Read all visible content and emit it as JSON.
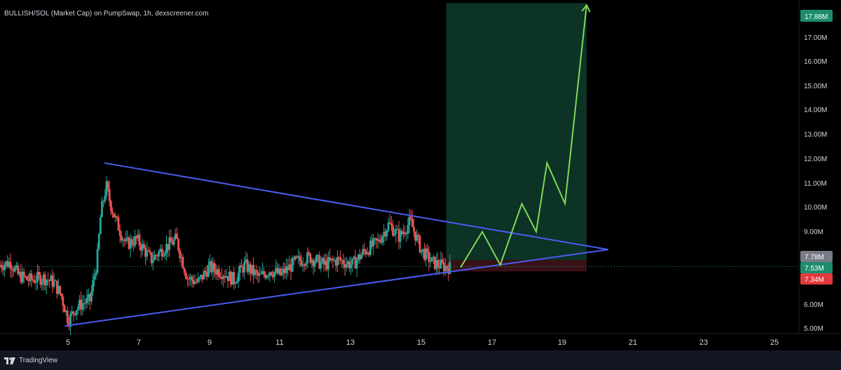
{
  "header": {
    "title": "BULLISH/SOL (Market Cap) on PumpSwap, 1h, dexscreener.com"
  },
  "footer": {
    "brand": "TradingView"
  },
  "colors": {
    "background": "#000000",
    "up": "#26a69a",
    "down": "#ef5350",
    "triangle": "#4a5cf0",
    "projection": "#7ed957",
    "target_zone": "#0f3b2d",
    "stop_zone": "#3d1318",
    "axis_text": "#d1d4dc"
  },
  "price_axis": {
    "ticks": [
      "17.00M",
      "16.00M",
      "15.00M",
      "14.00M",
      "13.00M",
      "12.00M",
      "11.00M",
      "10.00M",
      "9.00M",
      "6.00M",
      "5.00M"
    ],
    "tag_target": "17.88M",
    "tag_entry_upper": "7.78M",
    "tag_last": "7.53M",
    "tag_stop": "7.34M"
  },
  "time_axis": {
    "ticks": [
      "5",
      "7",
      "9",
      "11",
      "13",
      "15",
      "17",
      "19",
      "21",
      "23",
      "25"
    ]
  },
  "chart_data": {
    "type": "candlestick",
    "title": "BULLISH/SOL (Market Cap) on PumpSwap, 1h, dexscreener.com",
    "xlabel": "",
    "ylabel": "",
    "y_unit": "M",
    "ylim": [
      4.9,
      18.0
    ],
    "xlim": [
      3.8,
      26.0
    ],
    "y_ticks": [
      5,
      6,
      9,
      10,
      11,
      12,
      13,
      14,
      15,
      16,
      17
    ],
    "x_ticks": [
      5,
      7,
      9,
      11,
      13,
      15,
      17,
      19,
      21,
      23,
      25
    ],
    "grid": false,
    "price_path": [
      [
        3.8,
        7.6
      ],
      [
        4.1,
        7.7
      ],
      [
        4.3,
        7.2
      ],
      [
        4.6,
        7.0
      ],
      [
        5.0,
        7.1
      ],
      [
        5.3,
        6.9
      ],
      [
        5.5,
        6.4
      ],
      [
        5.7,
        5.4
      ],
      [
        5.9,
        5.9
      ],
      [
        6.1,
        6.1
      ],
      [
        6.3,
        6.2
      ],
      [
        6.5,
        7.8
      ],
      [
        6.6,
        9.6
      ],
      [
        6.75,
        10.7
      ],
      [
        6.85,
        10.1
      ],
      [
        7.0,
        9.4
      ],
      [
        7.3,
        8.4
      ],
      [
        7.6,
        8.6
      ],
      [
        8.0,
        7.8
      ],
      [
        8.3,
        8.2
      ],
      [
        8.7,
        8.6
      ],
      [
        9.0,
        7.1
      ],
      [
        9.3,
        6.9
      ],
      [
        9.6,
        7.5
      ],
      [
        10.0,
        7.3
      ],
      [
        10.3,
        7.0
      ],
      [
        10.6,
        7.6
      ],
      [
        11.0,
        7.1
      ],
      [
        11.3,
        7.4
      ],
      [
        11.6,
        7.2
      ],
      [
        12.0,
        7.7
      ],
      [
        12.4,
        7.9
      ],
      [
        12.8,
        7.6
      ],
      [
        13.2,
        7.8
      ],
      [
        13.6,
        7.6
      ],
      [
        13.9,
        8.1
      ],
      [
        14.3,
        8.5
      ],
      [
        14.6,
        9.2
      ],
      [
        14.9,
        8.7
      ],
      [
        15.2,
        9.3
      ],
      [
        15.5,
        8.2
      ],
      [
        15.8,
        7.7
      ],
      [
        16.1,
        7.55
      ],
      [
        16.3,
        7.5
      ]
    ],
    "triangle_upper": [
      [
        6.7,
        11.6
      ],
      [
        20.7,
        8.2
      ]
    ],
    "triangle_lower": [
      [
        5.6,
        5.2
      ],
      [
        20.7,
        8.2
      ]
    ],
    "projection_path": [
      [
        16.6,
        7.5
      ],
      [
        17.2,
        8.9
      ],
      [
        17.7,
        7.6
      ],
      [
        18.3,
        10.0
      ],
      [
        18.7,
        8.9
      ],
      [
        19.0,
        11.6
      ],
      [
        19.5,
        10.0
      ],
      [
        20.1,
        17.8
      ]
    ],
    "target_zone": {
      "x_start": 16.2,
      "x_end": 20.1,
      "y_low": 7.78,
      "y_high": 17.88
    },
    "stop_zone": {
      "x_start": 16.2,
      "x_end": 20.1,
      "y_low": 7.34,
      "y_high": 7.78
    },
    "last_price": 7.53
  }
}
